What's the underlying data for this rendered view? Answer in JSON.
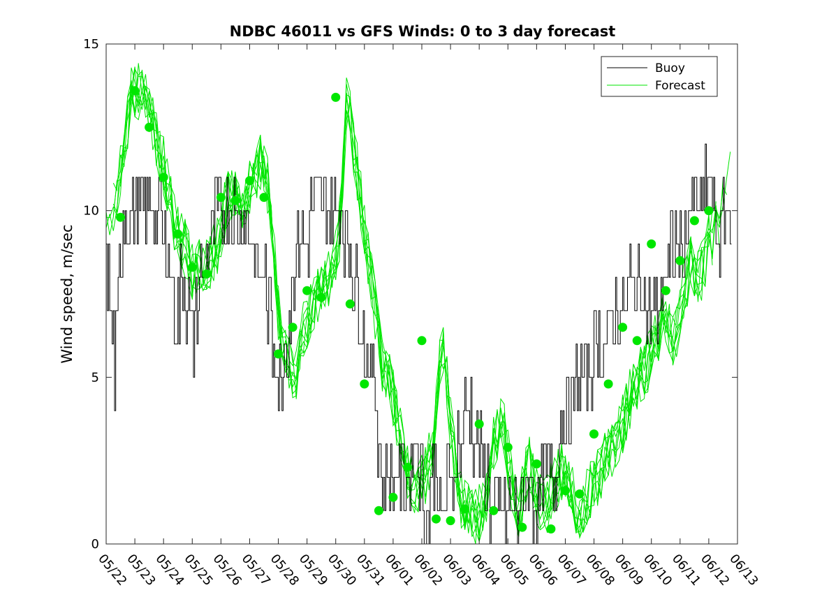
{
  "chart_data": {
    "type": "line",
    "title": "NDBC 46011 vs GFS Winds: 0 to 3 day forecast",
    "xlabel": "",
    "ylabel": "Wind speed, m/sec",
    "xlim": [
      "05/22",
      "06/13"
    ],
    "ylim": [
      0,
      15
    ],
    "y_ticks": [
      0,
      5,
      10,
      15
    ],
    "x_ticks": [
      "05/22",
      "05/23",
      "05/24",
      "05/25",
      "05/26",
      "05/27",
      "05/28",
      "05/29",
      "05/30",
      "05/31",
      "06/01",
      "06/02",
      "06/03",
      "06/04",
      "06/05",
      "06/06",
      "06/07",
      "06/08",
      "06/09",
      "06/10",
      "06/11",
      "06/12",
      "06/13"
    ],
    "grid": false,
    "legend": {
      "position": "top-right",
      "entries": [
        "Buoy",
        "Forecast"
      ]
    },
    "colors": {
      "buoy": "#000000",
      "forecast": "#00e600",
      "markers": "#00e600"
    },
    "series": [
      {
        "name": "Buoy",
        "style": "step",
        "x_day": [
          0.0,
          0.3,
          0.6,
          0.9,
          1.2,
          1.5,
          1.8,
          2.1,
          2.4,
          2.7,
          3.0,
          3.3,
          3.6,
          3.9,
          4.2,
          4.5,
          4.8,
          5.1,
          5.4,
          5.7,
          6.0,
          6.3,
          6.6,
          6.9,
          7.2,
          7.5,
          7.8,
          8.1,
          8.4,
          8.7,
          9.0,
          9.3,
          9.6,
          9.9,
          10.2,
          10.5,
          10.8,
          11.1,
          11.4,
          11.7,
          12.0,
          12.3,
          12.6,
          12.9,
          13.2,
          13.5,
          13.8,
          14.1,
          14.4,
          14.7,
          15.0,
          15.3,
          15.6,
          15.9,
          16.2,
          16.5,
          16.8,
          17.1,
          17.4,
          17.7,
          18.0,
          18.3,
          18.6,
          18.9,
          19.2,
          19.5,
          19.8,
          20.1,
          20.4,
          20.7,
          21.0,
          21.3,
          21.6,
          21.8
        ],
        "values": [
          9,
          5,
          10,
          10,
          10,
          10,
          10,
          9,
          7,
          8,
          6,
          8,
          9,
          10,
          10,
          10,
          10,
          9,
          8,
          7,
          5,
          6,
          9,
          9,
          10,
          10,
          10,
          10,
          9,
          8,
          6,
          5,
          2,
          2,
          2,
          2,
          3,
          1,
          2,
          1,
          2,
          3,
          4,
          3,
          2,
          1,
          1,
          1,
          1,
          2,
          1,
          2,
          2,
          4,
          4,
          5,
          5,
          6,
          6,
          7,
          7,
          8,
          8,
          7,
          7,
          8,
          9,
          9,
          10,
          10,
          11,
          9,
          10,
          10
        ]
      },
      {
        "name": "Forecast",
        "style": "ensemble",
        "x_day": [
          0.0,
          0.3,
          0.6,
          0.9,
          1.2,
          1.5,
          1.8,
          2.1,
          2.4,
          2.7,
          3.0,
          3.3,
          3.6,
          3.9,
          4.2,
          4.5,
          4.8,
          5.1,
          5.4,
          5.7,
          6.0,
          6.3,
          6.6,
          6.9,
          7.2,
          7.5,
          7.8,
          8.1,
          8.4,
          8.7,
          9.0,
          9.3,
          9.6,
          9.9,
          10.2,
          10.5,
          10.8,
          11.1,
          11.4,
          11.7,
          12.0,
          12.3,
          12.6,
          12.9,
          13.2,
          13.5,
          13.8,
          14.1,
          14.4,
          14.7,
          15.0,
          15.3,
          15.6,
          15.9,
          16.2,
          16.5,
          16.8,
          17.1,
          17.4,
          17.7,
          18.0,
          18.3,
          18.6,
          18.9,
          19.2,
          19.5,
          19.8,
          20.1,
          20.4,
          20.7,
          21.0,
          21.3,
          21.6,
          21.8
        ],
        "values": [
          9.5,
          10.2,
          11.5,
          13.8,
          13.5,
          13.0,
          12.0,
          11.0,
          9.5,
          9.0,
          8.2,
          8.3,
          8.5,
          9.0,
          10.3,
          10.6,
          10.0,
          11.0,
          11.5,
          10.5,
          7.0,
          5.5,
          5.0,
          6.5,
          7.2,
          7.5,
          8.0,
          9.0,
          13.5,
          11.5,
          9.5,
          7.5,
          5.5,
          4.8,
          3.5,
          2.2,
          1.5,
          2.0,
          3.0,
          6.5,
          3.5,
          1.5,
          1.0,
          0.8,
          1.2,
          3.0,
          3.8,
          2.0,
          1.0,
          2.5,
          1.5,
          1.0,
          1.8,
          2.2,
          1.8,
          0.8,
          1.5,
          2.0,
          2.5,
          3.0,
          3.6,
          4.5,
          5.0,
          5.5,
          6.3,
          6.8,
          6.0,
          7.5,
          8.5,
          8.0,
          9.0,
          9.5,
          10.5,
          11.5
        ]
      },
      {
        "name": "",
        "style": "markers",
        "x_day": [
          0.5,
          1.0,
          1.5,
          2.0,
          2.5,
          3.0,
          3.5,
          4.0,
          4.5,
          5.0,
          5.5,
          6.0,
          6.5,
          7.0,
          7.5,
          8.0,
          8.5,
          9.0,
          9.5,
          10.0,
          10.5,
          11.0,
          11.5,
          12.0,
          12.5,
          13.0,
          13.5,
          14.0,
          14.5,
          15.0,
          15.5,
          16.0,
          16.5,
          17.0,
          17.5,
          18.0,
          18.5,
          19.0,
          19.5,
          20.0,
          20.5,
          21.0
        ],
        "values": [
          9.8,
          13.6,
          12.5,
          11.0,
          9.3,
          8.3,
          8.1,
          10.4,
          10.3,
          10.9,
          10.4,
          5.7,
          6.5,
          7.6,
          7.4,
          13.4,
          7.2,
          4.8,
          1.0,
          1.4,
          2.3,
          6.1,
          0.75,
          0.7,
          1.05,
          3.6,
          1.0,
          2.9,
          0.5,
          2.4,
          0.45,
          1.6,
          1.5,
          3.3,
          4.8,
          6.5,
          6.1,
          9.0,
          7.6,
          8.5,
          9.7,
          10.0
        ]
      }
    ]
  }
}
